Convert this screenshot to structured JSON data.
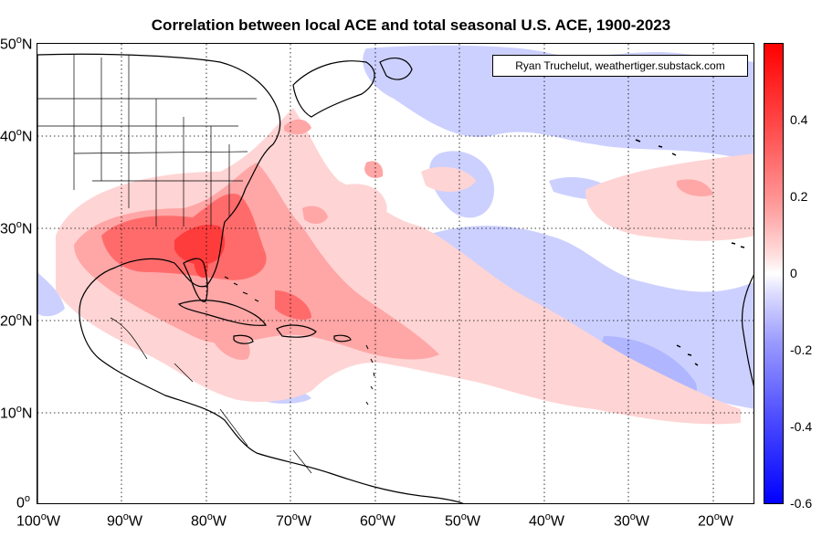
{
  "title": "Correlation between local ACE and total seasonal U.S. ACE, 1900-2023",
  "credit": "Ryan Truchelut, weathertiger.substack.com",
  "lat_labels": [
    "50",
    "40",
    "30",
    "20",
    "10",
    "0"
  ],
  "lat_suffix": "N",
  "lon_labels": [
    "100",
    "90",
    "80",
    "70",
    "60",
    "50",
    "40",
    "30",
    "20"
  ],
  "lon_suffix": "W",
  "degree_mark": "o",
  "colorbar": {
    "ticks": [
      "0.4",
      "0.2",
      "0",
      "-0.2",
      "-0.4",
      "-0.6"
    ],
    "range": [
      -0.6,
      0.6
    ],
    "positive_color": "#ff0000",
    "negative_color": "#0000ff"
  },
  "map_extent": {
    "lon_west": -100,
    "lon_east": -15,
    "lat_south": 0,
    "lat_north": 50
  }
}
